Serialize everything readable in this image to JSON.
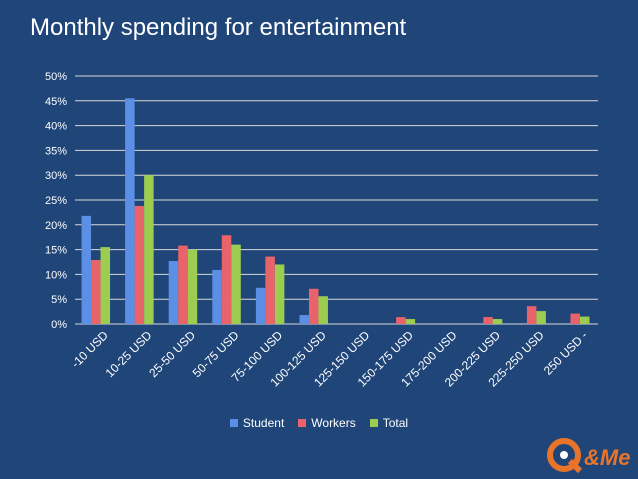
{
  "chart_data": {
    "type": "bar",
    "title": "Monthly spending for entertainment",
    "categories": [
      "-10 USD",
      "10-25 USD",
      "25-50 USD",
      "50-75 USD",
      "75-100 USD",
      "100-125 USD",
      "125-150 USD",
      "150-175 USD",
      "175-200 USD",
      "200-225 USD",
      "225-250 USD",
      "250 USD -"
    ],
    "series": [
      {
        "name": "Student",
        "color": "#5b8fe6",
        "values": [
          21.8,
          45.5,
          12.7,
          10.9,
          7.3,
          1.8,
          0,
          0,
          0,
          0,
          0,
          0
        ]
      },
      {
        "name": "Workers",
        "color": "#e8636a",
        "values": [
          12.9,
          23.8,
          15.8,
          17.9,
          13.6,
          7.1,
          0,
          1.4,
          0,
          1.4,
          3.6,
          2.1
        ]
      },
      {
        "name": "Total",
        "color": "#9ccc50",
        "values": [
          15.5,
          30.0,
          15.0,
          16.0,
          12.0,
          5.6,
          0,
          1.0,
          0,
          1.0,
          2.6,
          1.5
        ]
      }
    ],
    "yticks": [
      "0%",
      "5%",
      "10%",
      "15%",
      "20%",
      "25%",
      "30%",
      "35%",
      "40%",
      "45%",
      "50%"
    ],
    "ylim": [
      0,
      50
    ],
    "xlabel": "",
    "ylabel": "",
    "grid": true,
    "legend": "bottom"
  },
  "logo": {
    "text": "Q&Me",
    "color": "#e8742a"
  }
}
